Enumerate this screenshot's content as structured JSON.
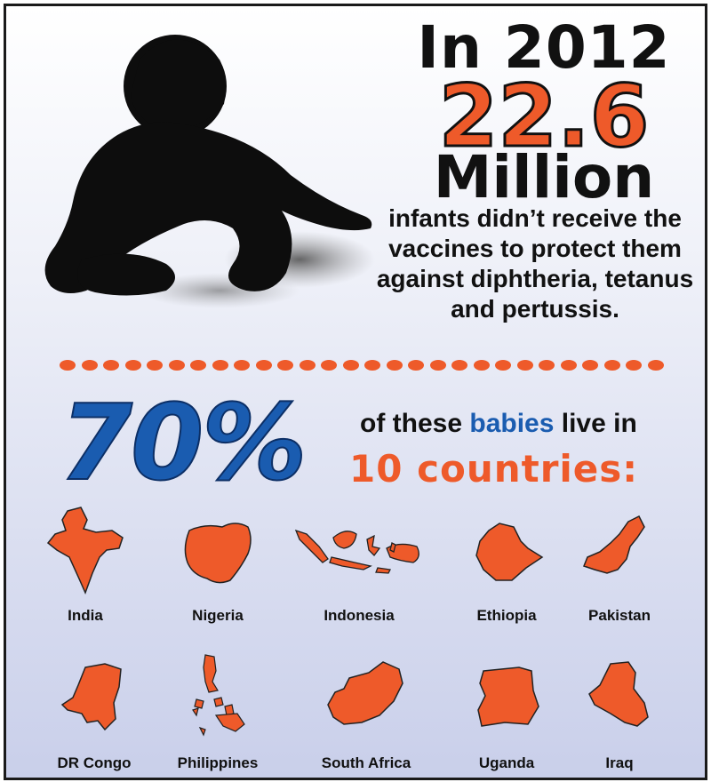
{
  "headline": {
    "year": "In 2012",
    "number": "22.6",
    "unit": "Million",
    "description": "infants didn’t receive the vaccines to protect them against diphtheria, tetanus and pertussis."
  },
  "stat": {
    "percent": "70%",
    "prefix": "of these",
    "highlight": "babies",
    "suffix": "live in",
    "countries_label": "10 countries:"
  },
  "countries": [
    {
      "name": "India"
    },
    {
      "name": "Nigeria"
    },
    {
      "name": "Indonesia"
    },
    {
      "name": "Ethiopia"
    },
    {
      "name": "Pakistan"
    },
    {
      "name": "DR Congo"
    },
    {
      "name": "Philippines"
    },
    {
      "name": "South Africa"
    },
    {
      "name": "Uganda"
    },
    {
      "name": "Iraq"
    }
  ],
  "colors": {
    "accent_orange": "#ee5a2a",
    "accent_blue": "#1a5cb0",
    "text_dark": "#111111"
  },
  "icons": {
    "baby": "crawling-baby-silhouette",
    "country_shape": "country-map-silhouette"
  }
}
